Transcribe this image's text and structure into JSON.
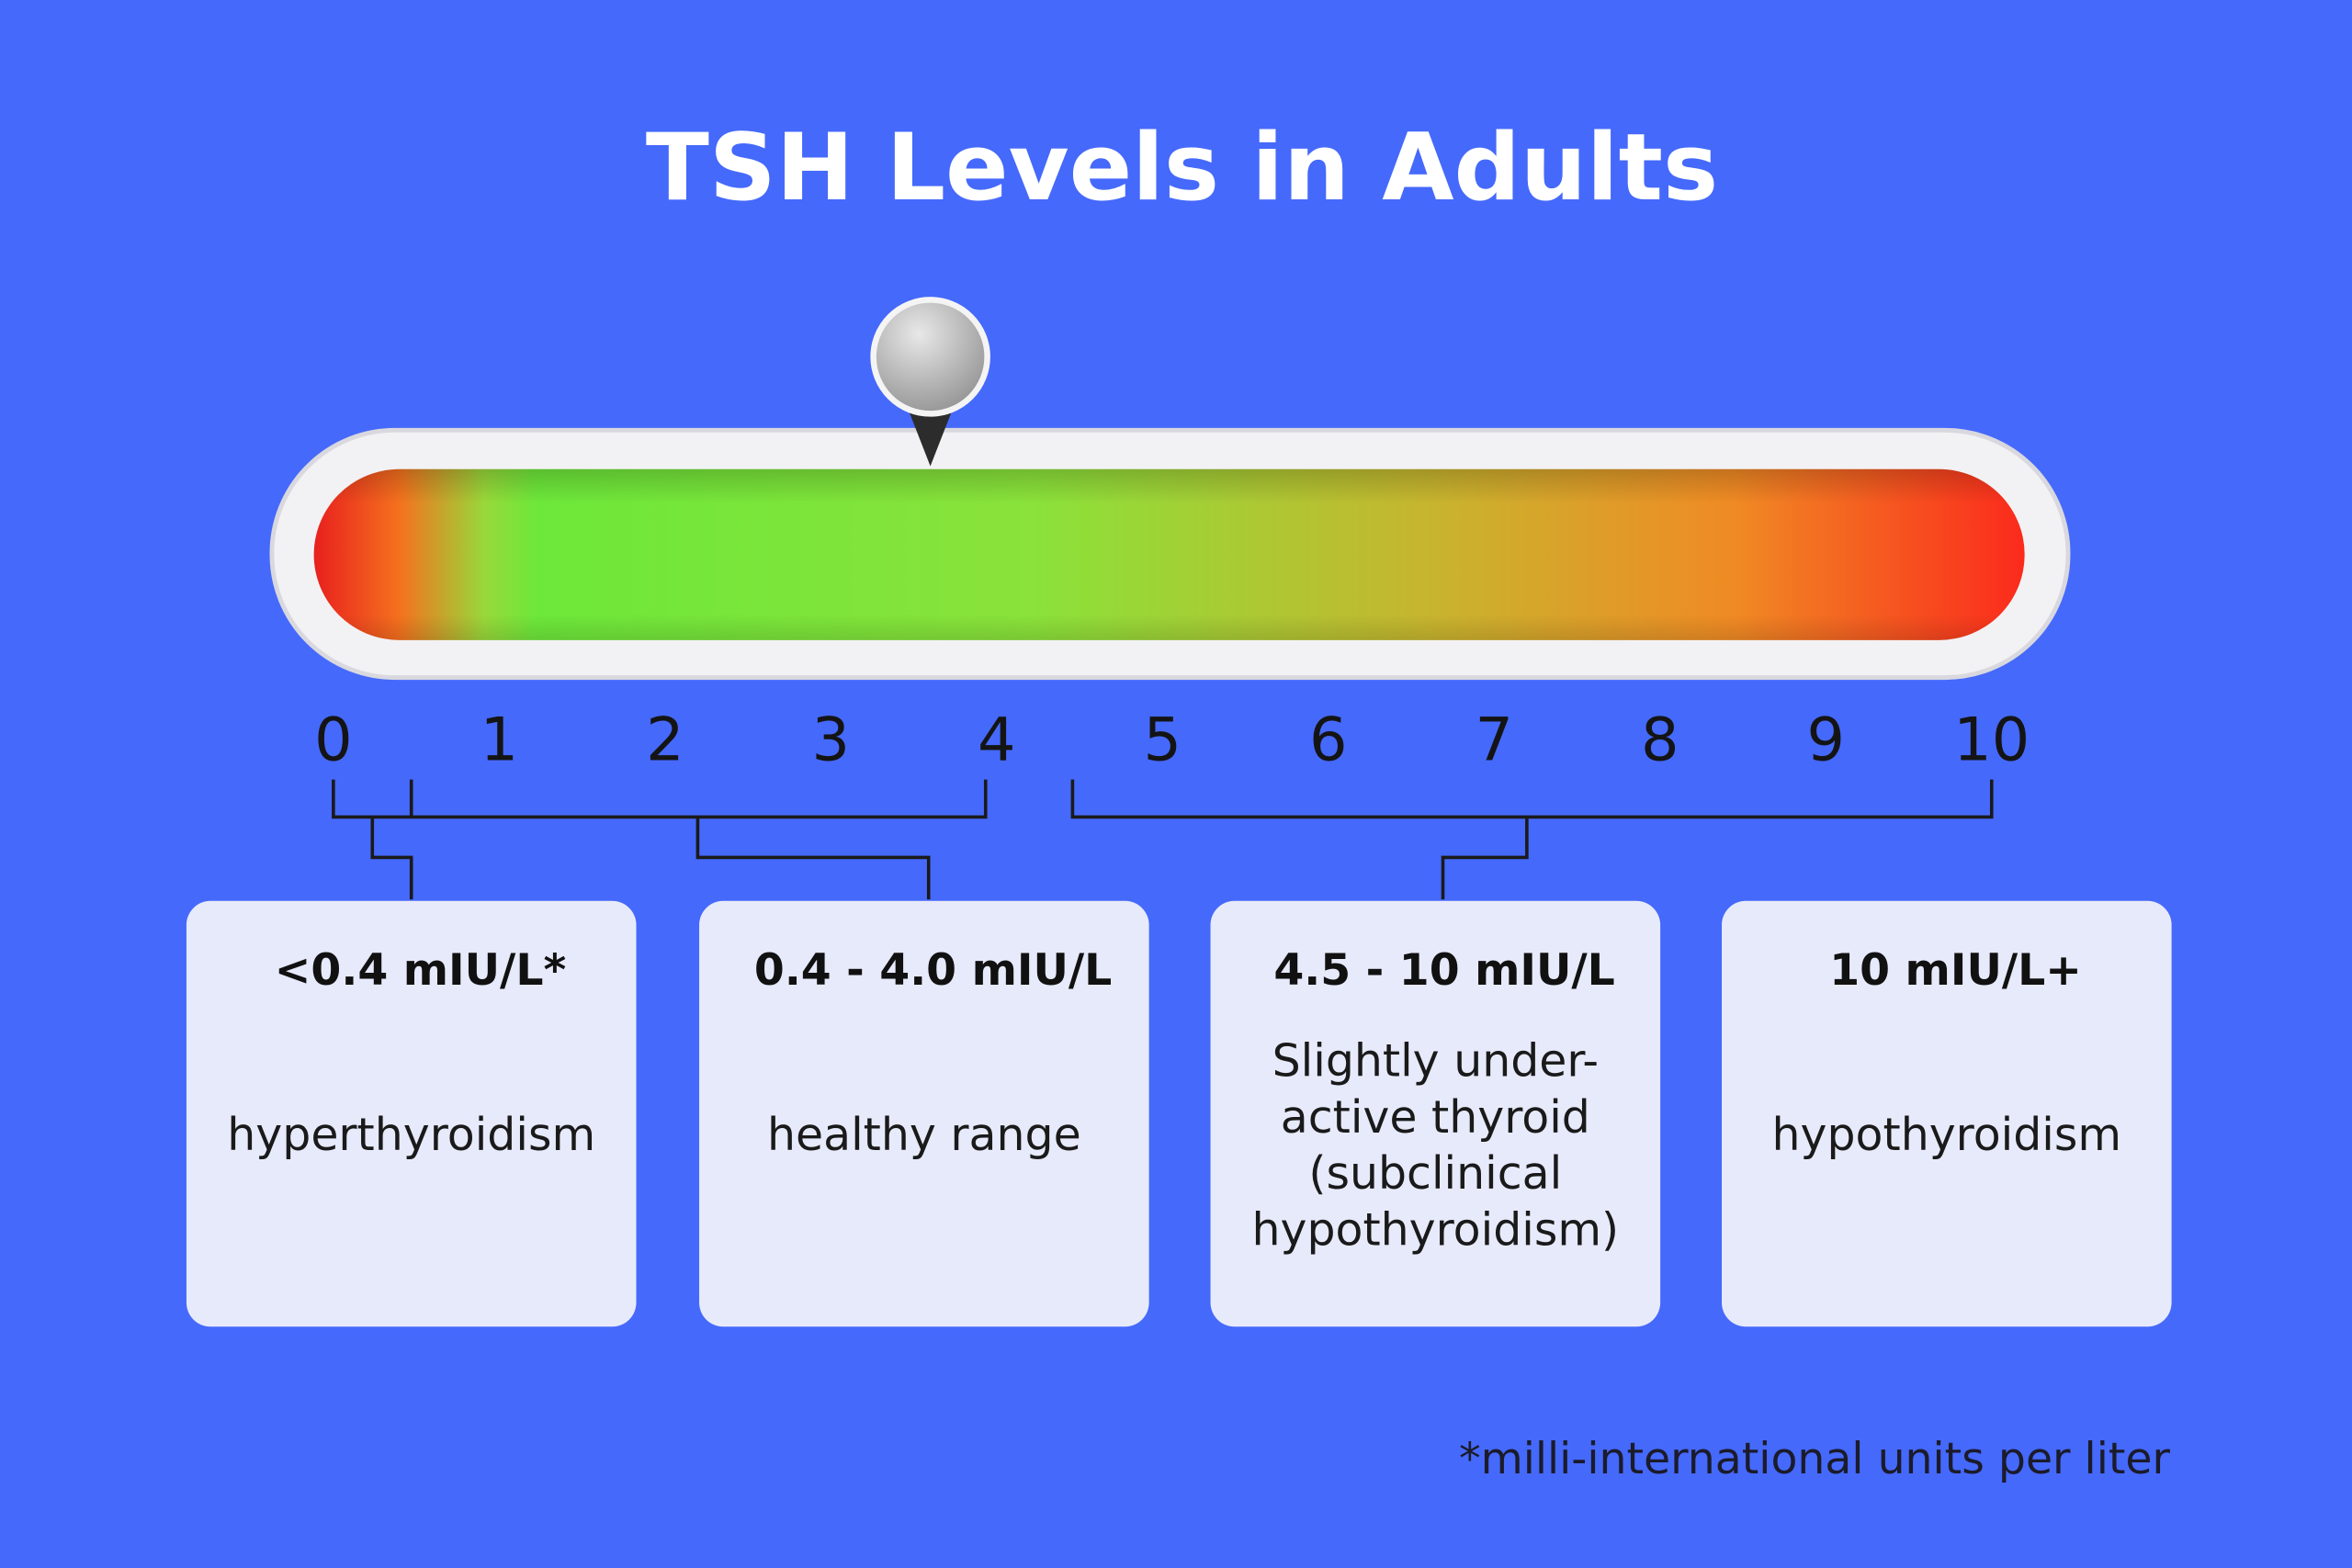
{
  "title": "TSH Levels in Adults",
  "scale": {
    "min": 0,
    "max": 10,
    "ticks": [
      0,
      1,
      2,
      3,
      4,
      5,
      6,
      7,
      8,
      9,
      10
    ],
    "pin_value": 3.6
  },
  "boxes": [
    {
      "range": "<0.4 mIU/L*",
      "description": [
        "hyperthyroidism"
      ]
    },
    {
      "range": "0.4 - 4.0 mIU/L",
      "description": [
        "healthy range"
      ]
    },
    {
      "range": "4.5 - 10 mIU/L",
      "description": [
        "Slightly under-",
        "active thyroid",
        "(subclinical",
        "hypothyroidism)"
      ]
    },
    {
      "range": "10 mIU/L+",
      "description": [
        "hypothyroidism"
      ]
    }
  ],
  "footnote": "*milli-international units per liter"
}
